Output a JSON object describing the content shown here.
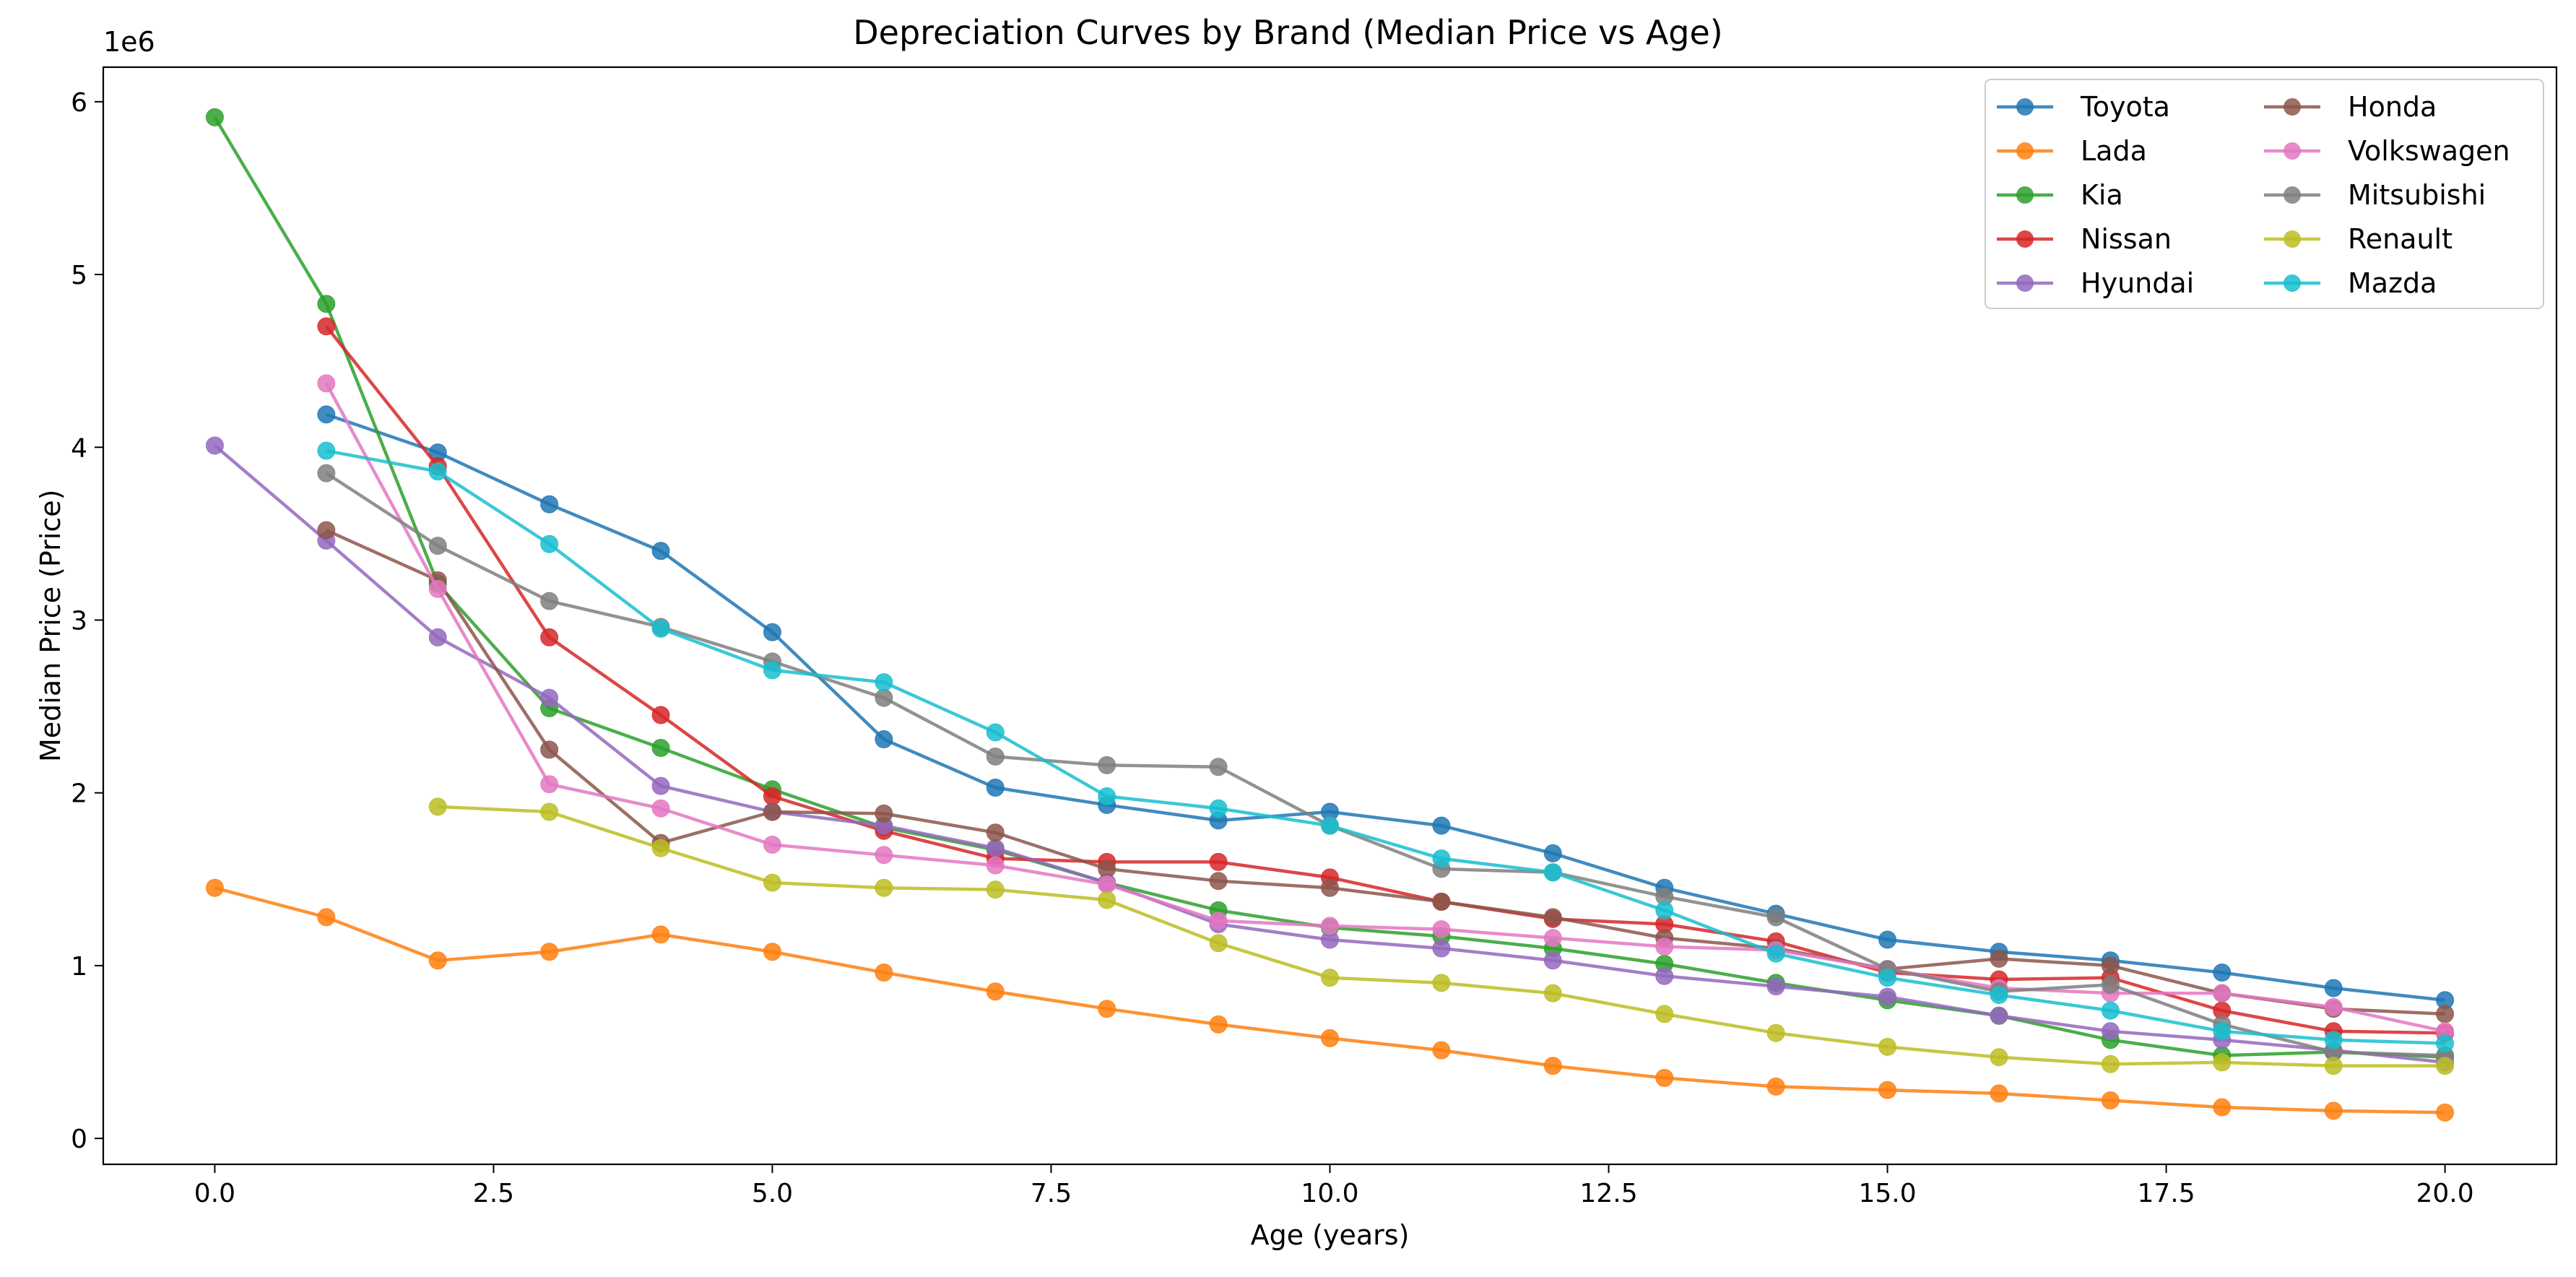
{
  "chart_data": {
    "type": "line",
    "title": "Depreciation Curves by Brand (Median Price vs Age)",
    "xlabel": "Age (years)",
    "ylabel": "Median Price (Price)",
    "y_offset_label": "1e6",
    "xlim": [
      -1.0,
      21.0
    ],
    "ylim": [
      -0.15,
      6.2
    ],
    "x_ticks": [
      0.0,
      2.5,
      5.0,
      7.5,
      10.0,
      12.5,
      15.0,
      17.5,
      20.0
    ],
    "x_tick_labels": [
      "0.0",
      "2.5",
      "5.0",
      "7.5",
      "10.0",
      "12.5",
      "15.0",
      "17.5",
      "20.0"
    ],
    "y_ticks": [
      0,
      1,
      2,
      3,
      4,
      5,
      6
    ],
    "y_tick_labels": [
      "0",
      "1",
      "2",
      "3",
      "4",
      "5",
      "6"
    ],
    "y_scale_note": "values in millions (×1e6)",
    "grid": false,
    "legend_position": "top-right",
    "legend_columns": 2,
    "series": [
      {
        "name": "Toyota",
        "color": "#1f77b4",
        "x": [
          1,
          2,
          3,
          4,
          5,
          6,
          7,
          8,
          9,
          10,
          11,
          12,
          13,
          14,
          15,
          16,
          17,
          18,
          19,
          20
        ],
        "y": [
          4.19,
          3.97,
          3.67,
          3.4,
          2.93,
          2.31,
          2.03,
          1.93,
          1.84,
          1.89,
          1.81,
          1.65,
          1.45,
          1.3,
          1.15,
          1.08,
          1.03,
          0.96,
          0.87,
          0.8
        ]
      },
      {
        "name": "Lada",
        "color": "#ff7f0e",
        "x": [
          0,
          1,
          2,
          3,
          4,
          5,
          6,
          7,
          8,
          9,
          10,
          11,
          12,
          13,
          14,
          15,
          16,
          17,
          18,
          19,
          20
        ],
        "y": [
          1.45,
          1.28,
          1.03,
          1.08,
          1.18,
          1.08,
          0.96,
          0.85,
          0.75,
          0.66,
          0.58,
          0.51,
          0.42,
          0.35,
          0.3,
          0.28,
          0.26,
          0.22,
          0.18,
          0.16,
          0.15
        ]
      },
      {
        "name": "Kia",
        "color": "#2ca02c",
        "x": [
          0,
          1,
          2,
          3,
          4,
          5,
          6,
          7,
          8,
          9,
          10,
          11,
          12,
          13,
          14,
          15,
          16,
          17,
          18,
          19,
          20
        ],
        "y": [
          5.91,
          4.83,
          3.21,
          2.49,
          2.26,
          2.02,
          1.8,
          1.67,
          1.48,
          1.32,
          1.22,
          1.17,
          1.1,
          1.01,
          0.9,
          0.8,
          0.71,
          0.57,
          0.48,
          0.5,
          0.47
        ]
      },
      {
        "name": "Nissan",
        "color": "#d62728",
        "x": [
          1,
          2,
          3,
          4,
          5,
          6,
          7,
          8,
          9,
          10,
          11,
          12,
          13,
          14,
          15,
          16,
          17,
          18,
          19,
          20
        ],
        "y": [
          4.7,
          3.89,
          2.9,
          2.45,
          1.98,
          1.78,
          1.62,
          1.6,
          1.6,
          1.51,
          1.37,
          1.27,
          1.24,
          1.14,
          0.96,
          0.92,
          0.93,
          0.74,
          0.62,
          0.61
        ]
      },
      {
        "name": "Hyundai",
        "color": "#9467bd",
        "x": [
          0,
          1,
          2,
          3,
          4,
          5,
          6,
          7,
          8,
          9,
          10,
          11,
          12,
          13,
          14,
          15,
          16,
          17,
          18,
          19,
          20
        ],
        "y": [
          4.01,
          3.46,
          2.9,
          2.55,
          2.04,
          1.89,
          1.81,
          1.68,
          1.48,
          1.24,
          1.15,
          1.1,
          1.03,
          0.94,
          0.88,
          0.82,
          0.71,
          0.62,
          0.57,
          0.51,
          0.44
        ]
      },
      {
        "name": "Honda",
        "color": "#8c564b",
        "x": [
          1,
          2,
          3,
          4,
          5,
          6,
          7,
          8,
          9,
          10,
          11,
          12,
          13,
          14,
          15,
          16,
          17,
          18,
          19,
          20
        ],
        "y": [
          3.52,
          3.23,
          2.25,
          1.71,
          1.89,
          1.88,
          1.77,
          1.56,
          1.49,
          1.45,
          1.37,
          1.28,
          1.16,
          1.1,
          0.98,
          1.04,
          1.0,
          0.84,
          0.75,
          0.72
        ]
      },
      {
        "name": "Volkswagen",
        "color": "#e377c2",
        "x": [
          1,
          2,
          3,
          4,
          5,
          6,
          7,
          8,
          9,
          10,
          11,
          12,
          13,
          14,
          15,
          16,
          17,
          18,
          19,
          20
        ],
        "y": [
          4.37,
          3.18,
          2.05,
          1.91,
          1.7,
          1.64,
          1.58,
          1.47,
          1.26,
          1.23,
          1.21,
          1.16,
          1.11,
          1.09,
          0.98,
          0.87,
          0.84,
          0.84,
          0.76,
          0.62
        ]
      },
      {
        "name": "Mitsubishi",
        "color": "#7f7f7f",
        "x": [
          1,
          2,
          3,
          4,
          5,
          6,
          7,
          8,
          9,
          10,
          11,
          12,
          13,
          14,
          15,
          16,
          17,
          18,
          19,
          20
        ],
        "y": [
          3.85,
          3.43,
          3.11,
          2.96,
          2.76,
          2.55,
          2.21,
          2.16,
          2.15,
          1.81,
          1.56,
          1.54,
          1.4,
          1.28,
          0.98,
          0.85,
          0.89,
          0.66,
          0.5,
          0.48
        ]
      },
      {
        "name": "Renault",
        "color": "#bcbd22",
        "x": [
          2,
          3,
          4,
          5,
          6,
          7,
          8,
          9,
          10,
          11,
          12,
          13,
          14,
          15,
          16,
          17,
          18,
          19,
          20
        ],
        "y": [
          1.92,
          1.89,
          1.68,
          1.48,
          1.45,
          1.44,
          1.38,
          1.13,
          0.93,
          0.9,
          0.84,
          0.72,
          0.61,
          0.53,
          0.47,
          0.43,
          0.44,
          0.42,
          0.42
        ]
      },
      {
        "name": "Mazda",
        "color": "#17becf",
        "x": [
          1,
          2,
          3,
          4,
          5,
          6,
          7,
          8,
          9,
          10,
          11,
          12,
          13,
          14,
          15,
          16,
          17,
          18,
          19,
          20
        ],
        "y": [
          3.98,
          3.86,
          3.44,
          2.95,
          2.71,
          2.64,
          2.35,
          1.98,
          1.91,
          1.81,
          1.62,
          1.54,
          1.32,
          1.07,
          0.93,
          0.83,
          0.74,
          0.62,
          0.57,
          0.55
        ]
      }
    ]
  }
}
